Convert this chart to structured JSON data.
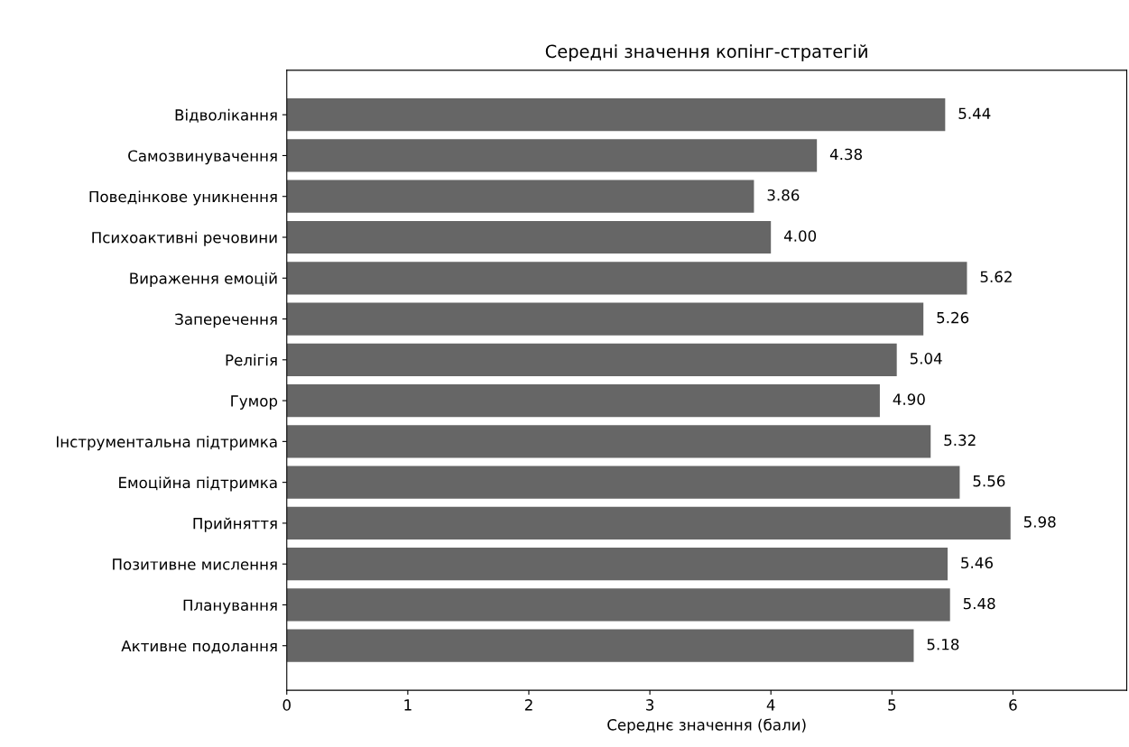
{
  "chart_data": {
    "type": "bar",
    "orientation": "horizontal",
    "title": "Середні значення копінг-стратегій",
    "xlabel": "Середнє значення (бали)",
    "categories": [
      "Відволікання",
      "Самозвинувачення",
      "Поведінкове уникнення",
      "Психоактивні речовини",
      "Вираження емоцій",
      "Заперечення",
      "Релігія",
      "Гумор",
      "Інструментальна підтримка",
      "Емоційна підтримка",
      "Прийняття",
      "Позитивне мислення",
      "Планування",
      "Активне подолання"
    ],
    "values": [
      5.44,
      4.38,
      3.86,
      4.0,
      5.62,
      5.26,
      5.04,
      4.9,
      5.32,
      5.56,
      5.98,
      5.46,
      5.48,
      5.18
    ],
    "value_labels": [
      "5.44",
      "4.38",
      "3.86",
      "4.00",
      "5.62",
      "5.26",
      "5.04",
      "4.90",
      "5.32",
      "5.56",
      "5.98",
      "5.46",
      "5.48",
      "5.18"
    ],
    "color": "#666666",
    "xlim": [
      0,
      6.94
    ],
    "xticks": [
      0,
      1,
      2,
      3,
      4,
      5,
      6
    ],
    "grid": false
  }
}
